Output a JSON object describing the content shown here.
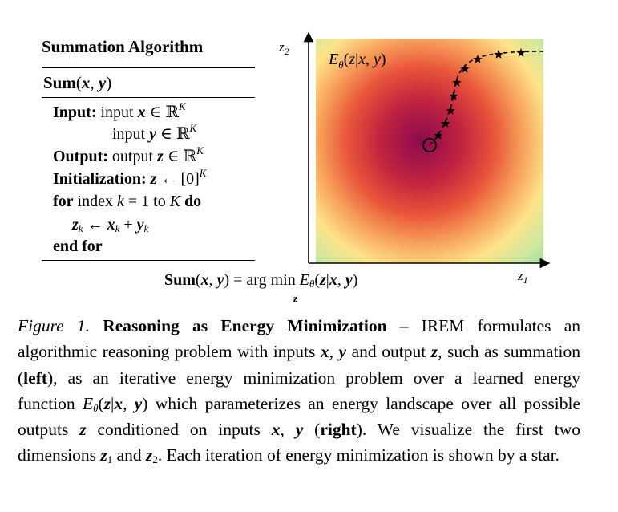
{
  "algorithm": {
    "title": "Summation Algorithm",
    "name": "Sum",
    "input_label": "Input:",
    "input_word": "input",
    "output_label": "Output:",
    "output_word": "output",
    "init_label": "Initialization:",
    "for_kw": "for",
    "for_text": "index",
    "for_to": "= 1 to",
    "do_kw": "do",
    "end_for": "end for"
  },
  "formula": {
    "lhs": "Sum",
    "eq_argmin": "= arg min",
    "energy": "E"
  },
  "plot": {
    "title": "E",
    "x_axis_label": "z",
    "y_axis_label": "z",
    "colormap": [
      "#8b0a50",
      "#c0233f",
      "#e8553a",
      "#f7a55c",
      "#fde38a",
      "#cbe9a0",
      "#86cfa5"
    ],
    "trajectory_marker": "star",
    "start_marker": "circle"
  },
  "caption": {
    "figure_label": "Figure 1.",
    "bold_title": "Reasoning as Energy Minimization",
    "text_1": " – IREM formulates an algorithmic reasoning problem with inputs ",
    "text_2": " and output ",
    "text_3": ", such as summation (",
    "left": "left",
    "text_4": "), as an iterative energy minimization problem over a learned energy function ",
    "text_5": " which parameterizes an energy landscape over all possible outputs ",
    "text_6": " conditioned on inputs ",
    "text_7": " (",
    "right": "right",
    "text_8": "). We visualize the first two dimensions ",
    "text_9": " and ",
    "text_10": ". Each iteration of energy minimization is shown by a star."
  }
}
